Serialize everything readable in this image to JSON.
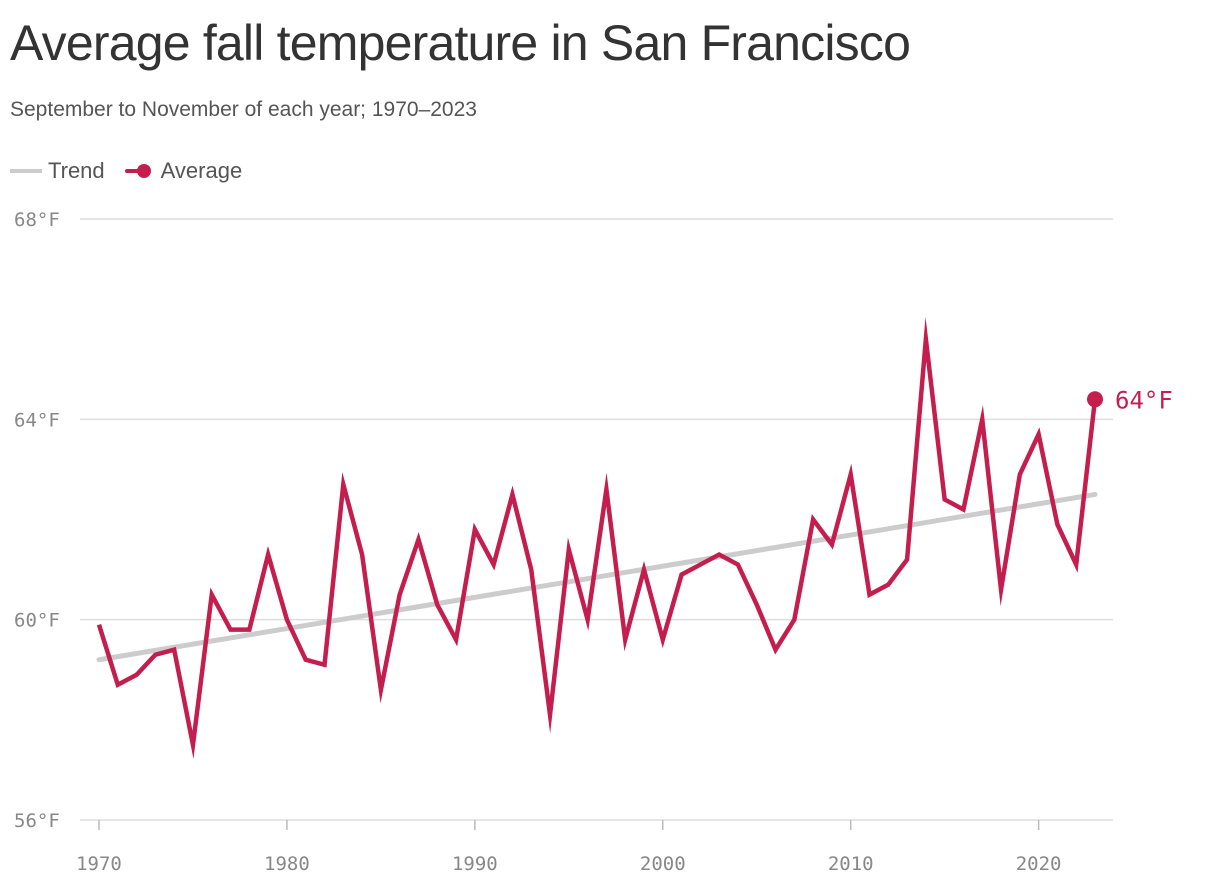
{
  "colors": {
    "average": "#c41e4f",
    "trend": "#cccccc",
    "grid": "#dddddd",
    "axis_text": "#888888"
  },
  "chart_data": {
    "type": "line",
    "title": "Average fall temperature in San Francisco",
    "subtitle": "September to November of each year; 1970–2023",
    "xlabel": "",
    "ylabel": "",
    "xlim": [
      1970,
      2023
    ],
    "ylim": [
      56,
      68
    ],
    "x_ticks": [
      {
        "value": 1970,
        "label": "1970"
      },
      {
        "value": 1980,
        "label": "1980"
      },
      {
        "value": 1990,
        "label": "1990"
      },
      {
        "value": 2000,
        "label": "2000"
      },
      {
        "value": 2010,
        "label": "2010"
      },
      {
        "value": 2020,
        "label": "2020"
      }
    ],
    "y_ticks": [
      {
        "value": 56,
        "label": "56°F"
      },
      {
        "value": 60,
        "label": "60°F"
      },
      {
        "value": 64,
        "label": "64°F"
      },
      {
        "value": 68,
        "label": "68°F"
      }
    ],
    "legend": [
      {
        "name": "Trend",
        "style": "line"
      },
      {
        "name": "Average",
        "style": "line-dot"
      }
    ],
    "legend_position": "top-left",
    "grid": true,
    "end_label": "64°F",
    "series": [
      {
        "name": "Average",
        "x": [
          1970,
          1971,
          1972,
          1973,
          1974,
          1975,
          1976,
          1977,
          1978,
          1979,
          1980,
          1981,
          1982,
          1983,
          1984,
          1985,
          1986,
          1987,
          1988,
          1989,
          1990,
          1991,
          1992,
          1993,
          1994,
          1995,
          1996,
          1997,
          1998,
          1999,
          2000,
          2001,
          2002,
          2003,
          2004,
          2005,
          2006,
          2007,
          2008,
          2009,
          2010,
          2011,
          2012,
          2013,
          2014,
          2015,
          2016,
          2017,
          2018,
          2019,
          2020,
          2021,
          2022,
          2023
        ],
        "y": [
          59.9,
          58.7,
          58.9,
          59.3,
          59.4,
          57.5,
          60.5,
          59.8,
          59.8,
          61.3,
          60.0,
          59.2,
          59.1,
          62.7,
          61.3,
          58.6,
          60.5,
          61.6,
          60.3,
          59.6,
          61.8,
          61.1,
          62.5,
          61.0,
          58.1,
          61.4,
          60.0,
          62.6,
          59.6,
          61.0,
          59.6,
          60.9,
          61.1,
          61.3,
          61.1,
          60.3,
          59.4,
          60.0,
          62.0,
          61.5,
          62.9,
          60.5,
          60.7,
          61.2,
          65.6,
          62.4,
          62.2,
          64.0,
          60.6,
          62.9,
          63.7,
          61.9,
          61.1,
          64.4
        ]
      },
      {
        "name": "Trend",
        "x": [
          1970,
          2023
        ],
        "y": [
          59.2,
          62.5
        ]
      }
    ]
  }
}
